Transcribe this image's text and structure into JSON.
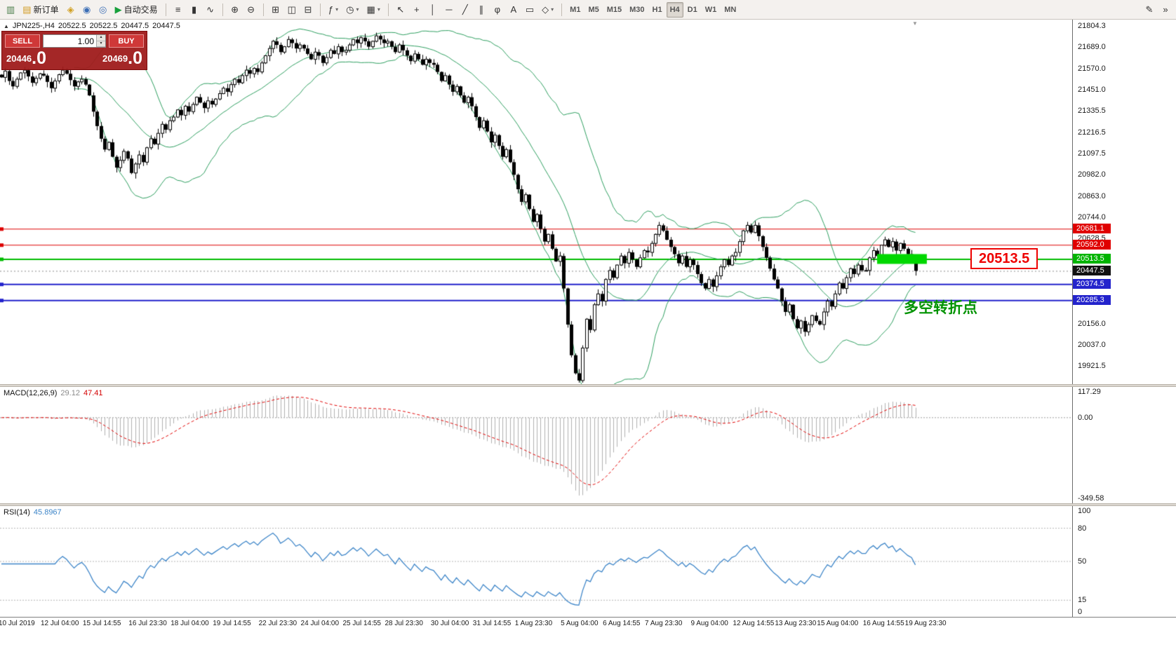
{
  "toolbar": {
    "caret_glyph": "▾",
    "groups": [
      {
        "name": "file",
        "items": [
          {
            "name": "new-chart-button",
            "glyph": "▥",
            "color": "#4a7d4a"
          },
          {
            "name": "new-order-button",
            "glyph": "▤",
            "color": "#d19a22",
            "label": "新订单"
          },
          {
            "name": "market-watch-button",
            "glyph": "◈",
            "color": "#d1a022"
          },
          {
            "name": "data-window-button",
            "glyph": "◉",
            "color": "#3a6db5"
          },
          {
            "name": "sound-button",
            "glyph": "◎",
            "color": "#3a6db5"
          },
          {
            "name": "autotrading-button",
            "glyph": "▶",
            "color": "#18a03c",
            "label": "自动交易"
          }
        ]
      },
      {
        "name": "chart-modes",
        "items": [
          {
            "name": "bar-chart-button",
            "glyph": "≡"
          },
          {
            "name": "candlestick-chart-button",
            "glyph": "▮"
          },
          {
            "name": "line-chart-button",
            "glyph": "∿"
          }
        ]
      },
      {
        "name": "zoom",
        "items": [
          {
            "name": "zoom-in-button",
            "glyph": "⊕"
          },
          {
            "name": "zoom-out-button",
            "glyph": "⊖"
          }
        ]
      },
      {
        "name": "layout",
        "items": [
          {
            "name": "tile-windows-button",
            "glyph": "⊞"
          },
          {
            "name": "tile-vertical-button",
            "glyph": "◫"
          },
          {
            "name": "tile-horizontal-button",
            "glyph": "⊟"
          }
        ]
      },
      {
        "name": "menus",
        "items": [
          {
            "name": "indicators-button",
            "glyph": "ƒ",
            "caret": true
          },
          {
            "name": "periods-button",
            "glyph": "◷",
            "caret": true
          },
          {
            "name": "templates-button",
            "glyph": "▦",
            "caret": true
          }
        ]
      },
      {
        "name": "draw-tools",
        "items": [
          {
            "name": "cursor-tool-button",
            "glyph": "↖"
          },
          {
            "name": "crosshair-tool-button",
            "glyph": "+"
          },
          {
            "name": "vertical-line-tool-button",
            "glyph": "│"
          },
          {
            "name": "horizontal-line-tool-button",
            "glyph": "─"
          },
          {
            "name": "trendline-tool-button",
            "glyph": "╱"
          },
          {
            "name": "channel-tool-button",
            "glyph": "∥"
          },
          {
            "name": "fibonacci-tool-button",
            "glyph": "φ"
          },
          {
            "name": "text-tool-button",
            "glyph": "A"
          },
          {
            "name": "text-label-tool-button",
            "glyph": "▭"
          },
          {
            "name": "shapes-tool-button",
            "glyph": "◇",
            "caret": true
          }
        ]
      },
      {
        "name": "timeframes",
        "items": [
          {
            "name": "timeframe-m1",
            "label": "M1"
          },
          {
            "name": "timeframe-m5",
            "label": "M5"
          },
          {
            "name": "timeframe-m15",
            "label": "M15"
          },
          {
            "name": "timeframe-m30",
            "label": "M30"
          },
          {
            "name": "timeframe-h1",
            "label": "H1"
          },
          {
            "name": "timeframe-h4",
            "label": "H4",
            "active": true
          },
          {
            "name": "timeframe-d1",
            "label": "D1"
          },
          {
            "name": "timeframe-w1",
            "label": "W1"
          },
          {
            "name": "timeframe-mn",
            "label": "MN"
          }
        ]
      }
    ],
    "right_items": [
      {
        "name": "edit-toolbar-button",
        "glyph": "✎"
      },
      {
        "name": "toolbar-overflow-button",
        "glyph": "»"
      }
    ]
  },
  "chart": {
    "header": {
      "collapse_glyph": "▲",
      "symbol": "JPN225-,H4",
      "open": "20522.5",
      "high": "20522.5",
      "low": "20447.5",
      "close": "20447.5"
    },
    "trade_panel": {
      "sell_label": "SELL",
      "buy_label": "BUY",
      "volume": "1.00",
      "spin_up_glyph": "▴",
      "spin_down_glyph": "▾",
      "sell_price_main": "20446",
      "sell_price_big": ".0",
      "buy_price_main": "20469",
      "buy_price_big": ".0"
    },
    "axis_labels": [
      21804.3,
      21689.0,
      21570.0,
      21451.0,
      21335.5,
      21216.5,
      21097.5,
      20982.0,
      20863.0,
      20744.0,
      20628.5,
      20156.0,
      20037.0,
      19921.5
    ],
    "price_tags": [
      {
        "text": "20681.1",
        "price": 20681.1,
        "color": "#e00000"
      },
      {
        "text": "20592.0",
        "price": 20592.0,
        "color": "#e00000"
      },
      {
        "text": "20513.5",
        "price": 20513.5,
        "color": "#00b400"
      },
      {
        "text": "20447.5",
        "price": 20447.5,
        "color": "#111111"
      },
      {
        "text": "20374.5",
        "price": 20374.5,
        "color": "#2323cc"
      },
      {
        "text": "20285.3",
        "price": 20285.3,
        "color": "#2323cc"
      }
    ],
    "levels": [
      {
        "price": 20681.1,
        "color": "#dd0000",
        "width": 1
      },
      {
        "price": 20592.0,
        "color": "#dd0000",
        "width": 1
      },
      {
        "price": 20513.5,
        "color": "#00bb00",
        "width": 2
      },
      {
        "price": 20374.5,
        "color": "#2222cc",
        "width": 2
      },
      {
        "price": 20285.3,
        "color": "#2222cc",
        "width": 2
      }
    ],
    "highlight": {
      "price": 20513.5,
      "color": "#00d800",
      "from_index": 229,
      "to_index": 242
    },
    "pivot_label": "20513.5",
    "annotation": "多空转折点",
    "annotation_anchor_price": 20250,
    "shift_marker": "▼"
  },
  "macd": {
    "name": "MACD(12,26,9)",
    "value_main": "29.12",
    "value_signal": "47.41",
    "axis": [
      {
        "text": "117.29",
        "value": 117.29
      },
      {
        "text": "0.00",
        "value": 0
      },
      {
        "text": "-349.58",
        "value": -349.58
      }
    ]
  },
  "rsi": {
    "name": "RSI(14)",
    "value": "45.8967",
    "axis": [
      {
        "text": "100",
        "value": 100
      },
      {
        "text": "80",
        "value": 80
      },
      {
        "text": "50",
        "value": 50
      },
      {
        "text": "15",
        "value": 15
      },
      {
        "text": "0",
        "value": 0
      }
    ],
    "levels": [
      80,
      50,
      15
    ]
  },
  "chart_data": {
    "type": "candlestick",
    "symbol": "JPN225-",
    "timeframe": "H4",
    "ohlc_header": {
      "open": 20522.5,
      "high": 20522.5,
      "low": 20447.5,
      "close": 20447.5
    },
    "bid": 20446.0,
    "ask": 20469.0,
    "current_price": 20447.5,
    "price_axis": {
      "min": 19820,
      "max": 21840
    },
    "horizontal_levels": {
      "resistance": [
        20681.1,
        20592.0
      ],
      "pivot": 20513.5,
      "support": [
        20374.5,
        20285.3
      ]
    },
    "indicators": [
      {
        "name": "Bollinger Bands",
        "period": 20,
        "deviation": 2
      },
      {
        "name": "MACD",
        "fast": 12,
        "slow": 26,
        "signal": 9,
        "values_shown": [
          29.12,
          47.41
        ]
      },
      {
        "name": "RSI",
        "period": 14,
        "value_shown": 45.8967
      }
    ],
    "x_labels": [
      {
        "i": 0,
        "t": "10 Jul 2019"
      },
      {
        "i": 11,
        "t": "12 Jul 04:00"
      },
      {
        "i": 22,
        "t": "15 Jul 14:55"
      },
      {
        "i": 34,
        "t": "16 Jul 23:30"
      },
      {
        "i": 45,
        "t": "18 Jul 04:00"
      },
      {
        "i": 56,
        "t": "19 Jul 14:55"
      },
      {
        "i": 68,
        "t": "22 Jul 23:30"
      },
      {
        "i": 79,
        "t": "24 Jul 04:00"
      },
      {
        "i": 90,
        "t": "25 Jul 14:55"
      },
      {
        "i": 101,
        "t": "28 Jul 23:30"
      },
      {
        "i": 113,
        "t": "30 Jul 04:00"
      },
      {
        "i": 124,
        "t": "31 Jul 14:55"
      },
      {
        "i": 135,
        "t": "1 Aug 23:30"
      },
      {
        "i": 147,
        "t": "5 Aug 04:00"
      },
      {
        "i": 158,
        "t": "6 Aug 14:55"
      },
      {
        "i": 169,
        "t": "7 Aug 23:30"
      },
      {
        "i": 181,
        "t": "9 Aug 04:00"
      },
      {
        "i": 192,
        "t": "12 Aug 14:55"
      },
      {
        "i": 203,
        "t": "13 Aug 23:30"
      },
      {
        "i": 214,
        "t": "15 Aug 04:00"
      },
      {
        "i": 226,
        "t": "16 Aug 14:55"
      },
      {
        "i": 237,
        "t": "19 Aug 23:30"
      }
    ],
    "closes": [
      21520,
      21555,
      21500,
      21470,
      21510,
      21545,
      21560,
      21525,
      21490,
      21515,
      21540,
      21530,
      21495,
      21460,
      21500,
      21535,
      21560,
      21540,
      21505,
      21470,
      21495,
      21510,
      21480,
      21420,
      21330,
      21250,
      21180,
      21120,
      21160,
      21080,
      21020,
      21060,
      21110,
      21070,
      20990,
      21040,
      21090,
      21050,
      21130,
      21180,
      21150,
      21210,
      21260,
      21230,
      21280,
      21300,
      21340,
      21310,
      21360,
      21330,
      21370,
      21410,
      21380,
      21350,
      21390,
      21370,
      21400,
      21430,
      21460,
      21440,
      21480,
      21510,
      21490,
      21530,
      21560,
      21540,
      21570,
      21550,
      21600,
      21640,
      21680,
      21720,
      21700,
      21660,
      21690,
      21730,
      21710,
      21680,
      21700,
      21680,
      21650,
      21620,
      21660,
      21640,
      21600,
      21630,
      21670,
      21650,
      21690,
      21660,
      21670,
      21700,
      21730,
      21710,
      21740,
      21720,
      21690,
      21720,
      21750,
      21730,
      21710,
      21720,
      21690,
      21660,
      21700,
      21670,
      21640,
      21610,
      21650,
      21620,
      21590,
      21620,
      21600,
      21590,
      21550,
      21500,
      21530,
      21480,
      21440,
      21470,
      21420,
      21380,
      21410,
      21360,
      21300,
      21240,
      21280,
      21220,
      21160,
      21200,
      21140,
      21080,
      21120,
      21050,
      20980,
      20900,
      20830,
      20870,
      20790,
      20720,
      20760,
      20680,
      20610,
      20650,
      20570,
      20500,
      20530,
      20350,
      20150,
      19980,
      19880,
      19840,
      20020,
      20180,
      20120,
      20260,
      20320,
      20280,
      20400,
      20450,
      20410,
      20480,
      20530,
      20490,
      20550,
      20510,
      20470,
      20520,
      20560,
      20550,
      20600,
      20650,
      20700,
      20670,
      20620,
      20580,
      20540,
      20490,
      20530,
      20470,
      20510,
      20480,
      20430,
      20380,
      20350,
      20400,
      20360,
      20420,
      20470,
      20510,
      20480,
      20530,
      20550,
      20610,
      20670,
      20700,
      20660,
      20700,
      20640,
      20580,
      20520,
      20460,
      20400,
      20350,
      20280,
      20220,
      20260,
      20180,
      20130,
      20170,
      20110,
      20150,
      20200,
      20170,
      20150,
      20220,
      20280,
      20250,
      20320,
      20380,
      20350,
      20410,
      20460,
      20430,
      20480,
      20450,
      20450,
      20520,
      20560,
      20530,
      20590,
      20620,
      20580,
      20610,
      20560,
      20600,
      20570,
      20540,
      20520,
      20447.5
    ]
  }
}
